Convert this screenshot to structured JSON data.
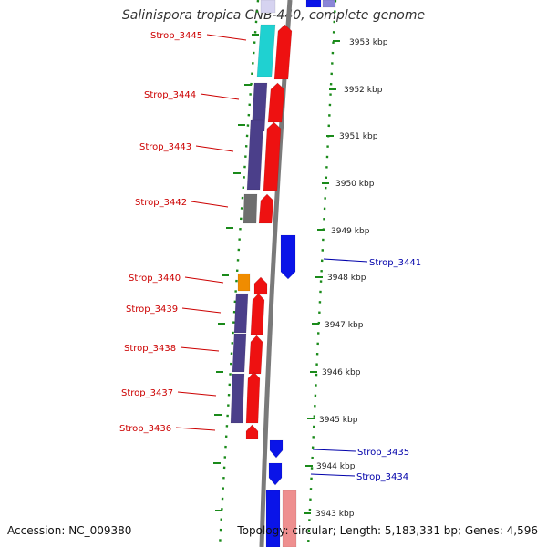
{
  "title": "Salinispora tropica CNB-440, complete genome",
  "accession": "Accession: NC_009380",
  "topology": "Topology: circular; Length: 5,183,331 bp; Genes: 4,596",
  "colors": {
    "cyan": "#1fd1d1",
    "purple": "#4b3f8a",
    "red": "#ee1111",
    "gray": "#6e6e6e",
    "orange": "#f08c00",
    "blue": "#0a14e8",
    "pink": "#ee8f8f",
    "lavender": "#8a86d8",
    "label_red": "#cc0000",
    "label_blue": "#0000aa",
    "tick_green": "#1a8a1a"
  },
  "scale_labels": [
    "3953 kbp",
    "3952 kbp",
    "3951 kbp",
    "3950 kbp",
    "3949 kbp",
    "3948 kbp",
    "3947 kbp",
    "3946 kbp",
    "3945 kbp",
    "3944 kbp",
    "3943 kbp"
  ],
  "left_genes": [
    {
      "label": "Strop_3445",
      "color": "cyan"
    },
    {
      "label": "Strop_3444",
      "color": "purple"
    },
    {
      "label": "Strop_3443",
      "color": "purple"
    },
    {
      "label": "Strop_3442",
      "color": "gray"
    },
    {
      "label": "Strop_3440",
      "color": "orange"
    },
    {
      "label": "Strop_3439",
      "color": "purple"
    },
    {
      "label": "Strop_3438",
      "color": "purple"
    },
    {
      "label": "Strop_3437",
      "color": "purple"
    },
    {
      "label": "Strop_3436",
      "color": "red"
    }
  ],
  "right_genes": [
    {
      "label": "Strop_3441",
      "color": "blue"
    },
    {
      "label": "Strop_3435",
      "color": "blue"
    },
    {
      "label": "Strop_3434",
      "color": "blue"
    }
  ]
}
